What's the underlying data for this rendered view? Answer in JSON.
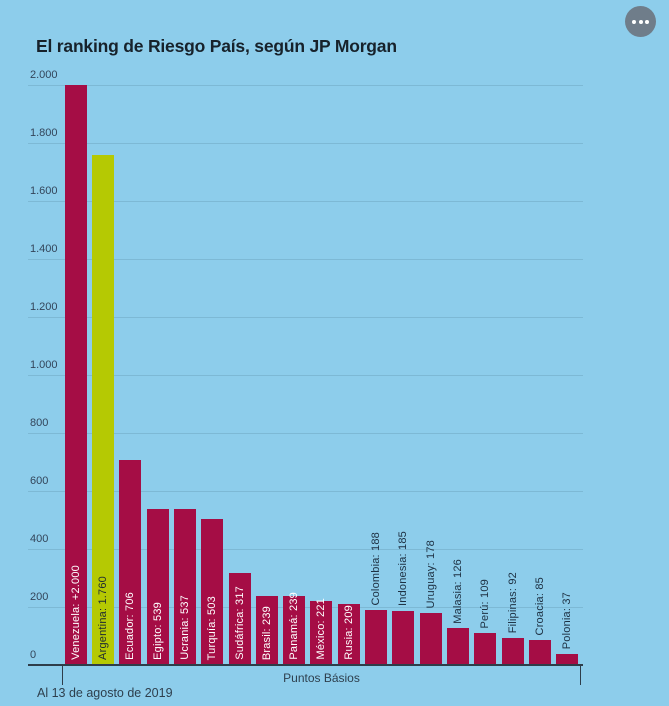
{
  "menu": {
    "icon": "ellipsis-icon"
  },
  "chart_data": {
    "type": "bar",
    "title": "El ranking de Riesgo País, según JP Morgan",
    "xlabel": "Puntos Básios",
    "ylabel": "",
    "note": "Al 13 de agosto de 2019",
    "ylim": [
      0,
      2000
    ],
    "ytick_step": 200,
    "ytick_labels": [
      "0",
      "200",
      "400",
      "600",
      "800",
      "1.000",
      "1.200",
      "1.400",
      "1.600",
      "1.800",
      "2.000"
    ],
    "grid": true,
    "legend": "none",
    "categories": [
      "Venezuela",
      "Argentina",
      "Ecuador",
      "Egipto",
      "Ucrania",
      "Turquía",
      "Sudáfrica",
      "Brasil",
      "Panamá",
      "México",
      "Rusia",
      "Colombia",
      "Indonesia",
      "Uruguay",
      "Malasia",
      "Perú",
      "Filipinas",
      "Croacia",
      "Polonia"
    ],
    "values": [
      2000,
      1760,
      706,
      539,
      537,
      503,
      317,
      239,
      239,
      221,
      209,
      188,
      185,
      178,
      126,
      109,
      92,
      85,
      37
    ],
    "bar_labels": [
      "Venezuela: +2.000",
      "Argentina: 1.760",
      "Ecuador: 706",
      "Egipto: 539",
      "Ucrania: 537",
      "Turquía: 503",
      "Sudáfrica: 317",
      "Brasil: 239",
      "Panamá: 239",
      "México: 221",
      "Rusia: 209",
      "Colombia: 188",
      "Indonesia: 185",
      "Uruguay: 178",
      "Malasia: 126",
      "Perú: 109",
      "Filipinas: 92",
      "Croacia: 85",
      "Polonia: 37"
    ],
    "label_inside": [
      true,
      true,
      true,
      true,
      true,
      true,
      true,
      true,
      true,
      true,
      true,
      false,
      false,
      false,
      false,
      false,
      false,
      false,
      false
    ],
    "highlight_index": 1,
    "colors": {
      "background": "#8DCDEB",
      "bar": "#A50D45",
      "highlight": "#B5C903",
      "grid": "#7DB9D5",
      "axis": "#2E3D4A",
      "label_inside": "#FFFFFF",
      "label_on_highlight": "#202B33",
      "label_outside": "#1D3042",
      "ytick_text": "#33455A"
    }
  }
}
